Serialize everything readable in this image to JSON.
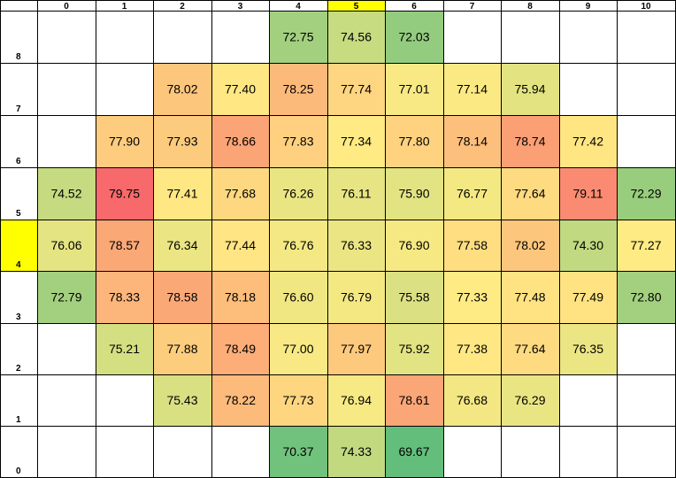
{
  "chart_data": {
    "type": "heatmap",
    "title": "",
    "xlabel": "",
    "ylabel": "",
    "x_labels": [
      "0",
      "1",
      "2",
      "3",
      "4",
      "5",
      "6",
      "7",
      "8",
      "9",
      "10"
    ],
    "y_labels": [
      "8",
      "7",
      "6",
      "5",
      "4",
      "3",
      "2",
      "1",
      "0"
    ],
    "highlight": {
      "column": "5",
      "row": "4",
      "color": "#ffff00"
    },
    "color_scale": {
      "low": "#63be7b",
      "mid": "#ffeb84",
      "high": "#f8696b"
    },
    "rows": [
      [
        null,
        null,
        null,
        null,
        72.75,
        74.56,
        72.03,
        null,
        null,
        null,
        null
      ],
      [
        null,
        null,
        78.02,
        77.4,
        78.25,
        77.74,
        77.01,
        77.14,
        75.94,
        null,
        null
      ],
      [
        null,
        77.9,
        77.93,
        78.66,
        77.83,
        77.34,
        77.8,
        78.14,
        78.74,
        77.42,
        null
      ],
      [
        74.52,
        79.75,
        77.41,
        77.68,
        76.26,
        76.11,
        75.9,
        76.77,
        77.64,
        79.11,
        72.29
      ],
      [
        76.06,
        78.57,
        76.34,
        77.44,
        76.76,
        76.33,
        76.9,
        77.58,
        78.02,
        74.3,
        77.27
      ],
      [
        72.79,
        78.33,
        78.58,
        78.18,
        76.6,
        76.79,
        75.58,
        77.33,
        77.48,
        77.49,
        72.8
      ],
      [
        null,
        75.21,
        77.88,
        78.49,
        77.0,
        77.97,
        75.92,
        77.38,
        77.64,
        76.35,
        null
      ],
      [
        null,
        null,
        75.43,
        78.22,
        77.73,
        76.94,
        78.61,
        76.68,
        76.29,
        null,
        null
      ],
      [
        null,
        null,
        null,
        null,
        70.37,
        74.33,
        69.67,
        null,
        null,
        null,
        null
      ]
    ]
  }
}
